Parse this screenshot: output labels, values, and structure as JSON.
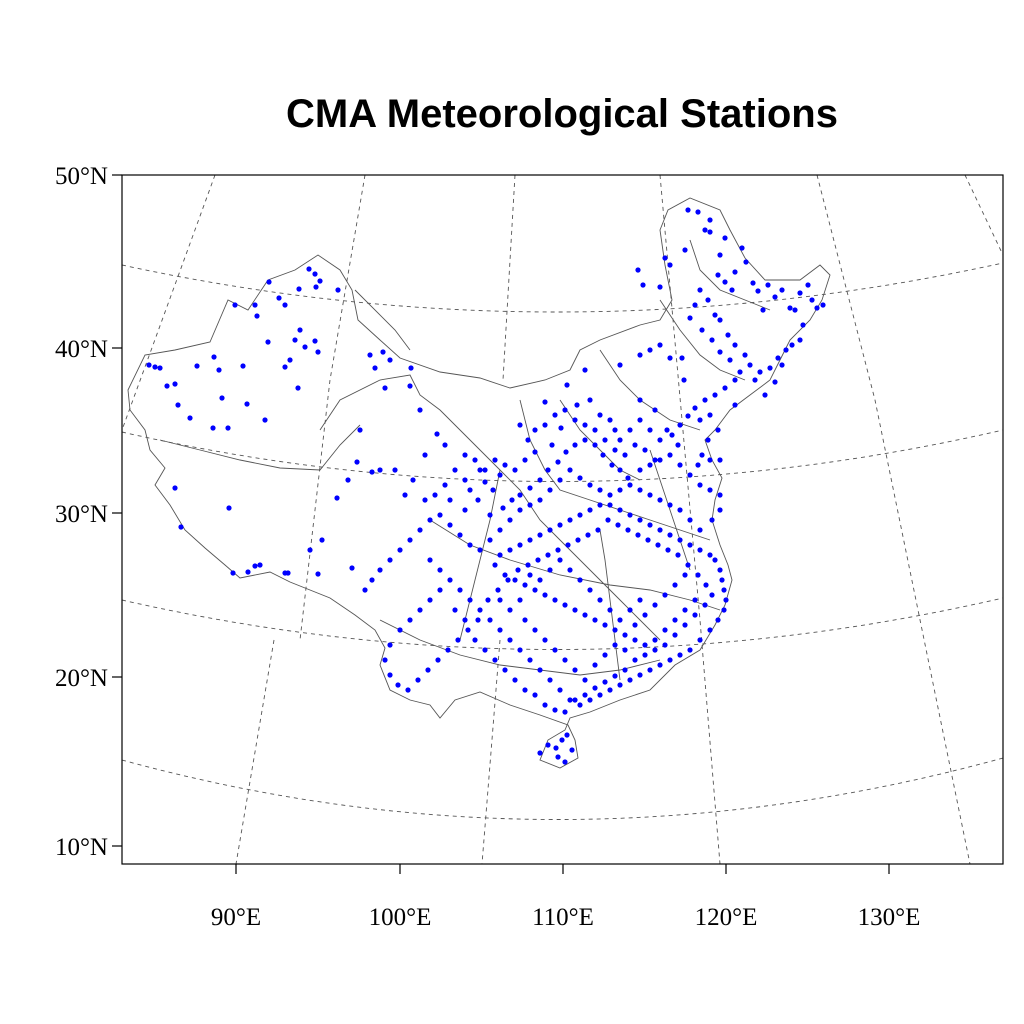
{
  "title": "CMA Meteorological Stations",
  "y_axis_labels": [
    "50°N",
    "40°N",
    "30°N",
    "20°N",
    "10°N"
  ],
  "x_axis_labels": [
    "90°E",
    "100°E",
    "110°E",
    "120°E",
    "130°E"
  ],
  "colors": {
    "station": "#0000ff",
    "frame": "#000000",
    "boundary": "#555555",
    "graticule": "#555555"
  },
  "map_data": {
    "projection": "conic",
    "lat_range": [
      10,
      50
    ],
    "lon_range": [
      83,
      137
    ],
    "graticule_lats": [
      10,
      20,
      30,
      40,
      50
    ],
    "graticule_lons": [
      90,
      105,
      120,
      135
    ],
    "stations_shown": "blue dots"
  }
}
